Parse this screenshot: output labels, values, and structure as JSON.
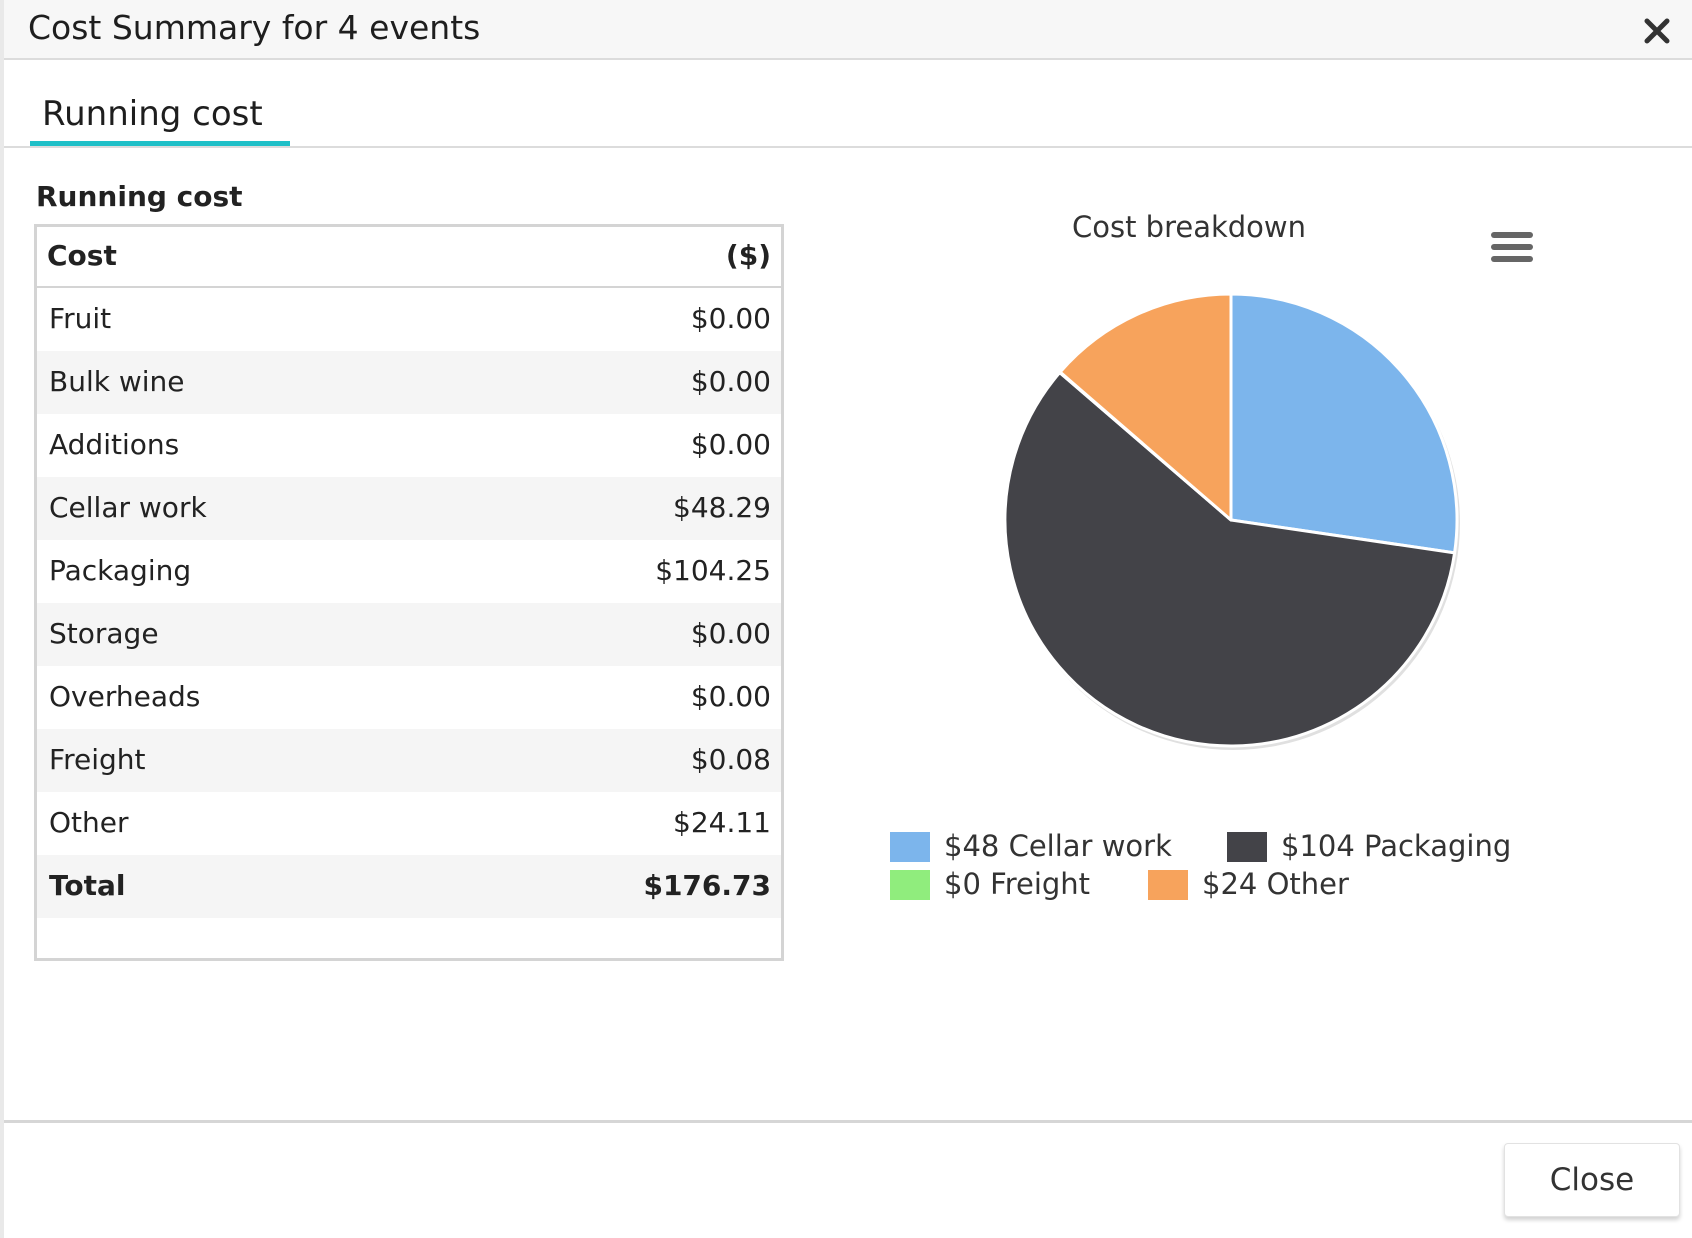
{
  "dialog": {
    "title": "Cost Summary for 4 events",
    "close_icon": "close-icon",
    "close_button_label": "Close"
  },
  "tabs": [
    {
      "label": "Running cost",
      "active": true
    }
  ],
  "table": {
    "section_title": "Running cost",
    "header": {
      "cost": "Cost",
      "amount": "($)"
    },
    "rows": [
      {
        "label": "Fruit",
        "value": "$0.00"
      },
      {
        "label": "Bulk wine",
        "value": "$0.00"
      },
      {
        "label": "Additions",
        "value": "$0.00"
      },
      {
        "label": "Cellar work",
        "value": "$48.29"
      },
      {
        "label": "Packaging",
        "value": "$104.25"
      },
      {
        "label": "Storage",
        "value": "$0.00"
      },
      {
        "label": "Overheads",
        "value": "$0.00"
      },
      {
        "label": "Freight",
        "value": "$0.08"
      },
      {
        "label": "Other",
        "value": "$24.11"
      }
    ],
    "total": {
      "label": "Total",
      "value": "$176.73"
    }
  },
  "chart_menu_icon": "hamburger-menu-icon",
  "chart_data": {
    "type": "pie",
    "title": "Cost breakdown",
    "slices": [
      {
        "label": "$48 Cellar work",
        "value": 48.29,
        "color": "#7cb5ec"
      },
      {
        "label": "$104 Packaging",
        "value": 104.25,
        "color": "#434348"
      },
      {
        "label": "$0 Freight",
        "value": 0.08,
        "color": "#90ed7d"
      },
      {
        "label": "$24 Other",
        "value": 24.11,
        "color": "#f7a35c"
      }
    ],
    "legend_position": "bottom"
  },
  "colors": {
    "tab_accent": "#1fc0c8"
  }
}
